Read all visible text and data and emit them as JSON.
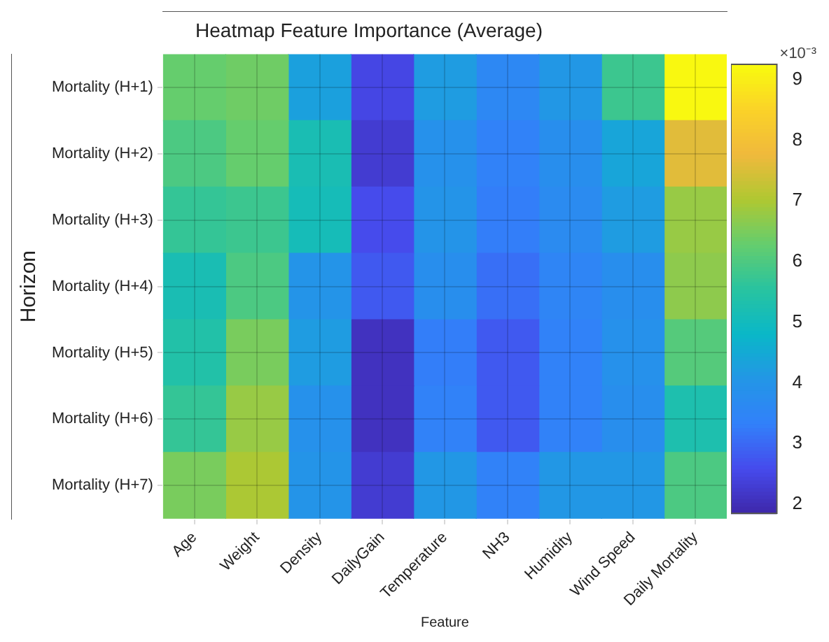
{
  "chart_data": {
    "type": "heatmap",
    "title": "Heatmap Feature Importance (Average)",
    "xlabel": "Feature",
    "ylabel": "Horizon",
    "clabel": "×10⁻³",
    "categories": [
      "Age",
      "Weight",
      "Density",
      "DailyGain",
      "Temperature",
      "NH3",
      "Humidity",
      "Wind Speed",
      "Daily Mortality"
    ],
    "y_categories": [
      "Mortality (H+1)",
      "Mortality (H+2)",
      "Mortality (H+3)",
      "Mortality (H+4)",
      "Mortality (H+5)",
      "Mortality (H+6)",
      "Mortality (H+7)"
    ],
    "cells": [
      [
        6.3,
        6.4,
        4.3,
        2.5,
        4.2,
        3.6,
        4.1,
        5.8,
        9.2
      ],
      [
        6.0,
        6.3,
        5.2,
        2.3,
        3.9,
        3.4,
        3.8,
        4.4,
        7.6
      ],
      [
        5.7,
        5.8,
        5.1,
        2.6,
        4.0,
        3.3,
        3.7,
        4.2,
        6.8
      ],
      [
        5.2,
        6.0,
        4.0,
        2.8,
        3.8,
        3.1,
        3.5,
        3.8,
        6.7
      ],
      [
        5.4,
        6.5,
        4.2,
        2.1,
        3.3,
        2.8,
        3.4,
        3.9,
        6.1
      ],
      [
        5.7,
        6.8,
        3.9,
        2.1,
        3.4,
        2.8,
        3.4,
        3.8,
        5.3
      ],
      [
        6.5,
        7.0,
        4.0,
        2.3,
        4.1,
        3.4,
        4.1,
        4.1,
        6.0
      ]
    ],
    "clim": [
      1.85,
      9.25
    ],
    "cticks": [
      2,
      3,
      4,
      5,
      6,
      7,
      8,
      9
    ],
    "grid": true
  }
}
